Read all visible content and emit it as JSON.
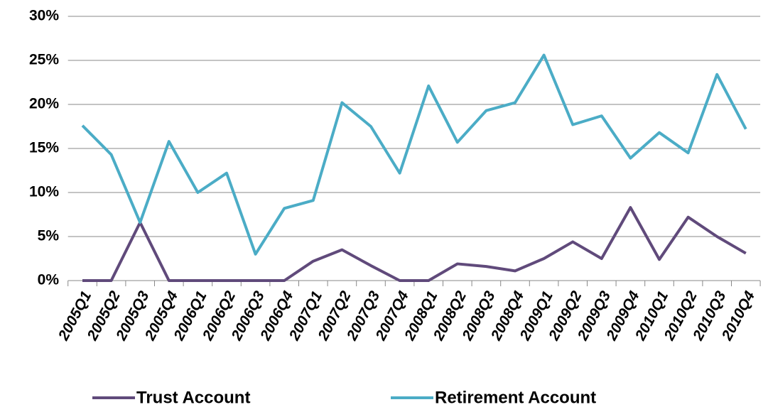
{
  "chart_data": {
    "type": "line",
    "categories": [
      "2005Q1",
      "2005Q2",
      "2005Q3",
      "2005Q4",
      "2006Q1",
      "2006Q2",
      "2006Q3",
      "2006Q4",
      "2007Q1",
      "2007Q2",
      "2007Q3",
      "2007Q4",
      "2008Q1",
      "2008Q2",
      "2008Q3",
      "2008Q4",
      "2009Q1",
      "2009Q2",
      "2009Q3",
      "2009Q4",
      "2010Q1",
      "2010Q2",
      "2010Q3",
      "2010Q4"
    ],
    "series": [
      {
        "name": "Trust Account",
        "color": "#604a7b",
        "values": [
          0,
          0,
          6.6,
          0,
          0,
          0,
          0,
          0,
          2.2,
          3.5,
          1.7,
          0,
          0,
          1.9,
          1.6,
          1.1,
          2.5,
          4.4,
          2.5,
          8.3,
          2.4,
          7.2,
          5.0,
          3.1
        ]
      },
      {
        "name": "Retirement Account",
        "color": "#4bacc6",
        "values": [
          17.6,
          14.3,
          6.6,
          15.8,
          10.0,
          12.2,
          3.0,
          8.2,
          9.1,
          20.2,
          17.5,
          12.2,
          22.1,
          15.7,
          19.3,
          20.2,
          25.6,
          17.7,
          18.7,
          13.9,
          16.8,
          14.5,
          23.4,
          17.2
        ]
      }
    ],
    "ylim": [
      0,
      30
    ],
    "yticks": [
      {
        "value": 0,
        "label": "0%"
      },
      {
        "value": 5,
        "label": "5%"
      },
      {
        "value": 10,
        "label": "10%"
      },
      {
        "value": 15,
        "label": "15%"
      },
      {
        "value": 20,
        "label": "20%"
      },
      {
        "value": 25,
        "label": "25%"
      },
      {
        "value": 30,
        "label": "30%"
      }
    ],
    "grid": true
  }
}
